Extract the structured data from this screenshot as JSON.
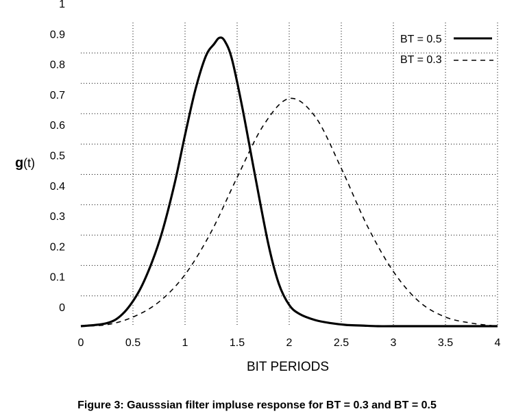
{
  "chart_data": {
    "type": "line",
    "xlabel": "BIT PERIODS",
    "ylabel_bold": "g",
    "ylabel_rest": "(t)",
    "caption": "Figure 3:   Gausssian filter impluse response for BT = 0.3 and BT = 0.5",
    "xlim": [
      0,
      4
    ],
    "ylim": [
      0,
      1
    ],
    "x_ticks": [
      0,
      0.5,
      1,
      1.5,
      2,
      2.5,
      3,
      3.5,
      4
    ],
    "x_tick_labels": [
      "0",
      "0.5",
      "1",
      "1.5",
      "2",
      "2.5",
      "3",
      "3.5",
      "4"
    ],
    "y_ticks": [
      0,
      0.1,
      0.2,
      0.3,
      0.4,
      0.5,
      0.6,
      0.7,
      0.8,
      0.9,
      1
    ],
    "y_tick_labels": [
      "0",
      "0.1",
      "0.2",
      "0.3",
      "0.4",
      "0.5",
      "0.6",
      "0.7",
      "0.8",
      "0.9",
      "1"
    ],
    "grid": true,
    "legend_position": "top-right",
    "series": [
      {
        "name": "BT = 0.5",
        "style": "solid",
        "color": "#000000",
        "x": [
          0,
          0.25,
          0.4,
          0.55,
          0.67,
          0.78,
          0.9,
          1.0,
          1.1,
          1.2,
          1.28,
          1.33,
          1.38,
          1.45,
          1.55,
          1.67,
          1.8,
          1.9,
          2.0,
          2.1,
          2.25,
          2.4,
          2.55,
          2.7,
          2.85,
          3.0,
          3.5,
          4.0
        ],
        "y": [
          0.0,
          0.01,
          0.04,
          0.11,
          0.2,
          0.31,
          0.47,
          0.63,
          0.78,
          0.89,
          0.93,
          0.95,
          0.94,
          0.88,
          0.72,
          0.5,
          0.27,
          0.14,
          0.07,
          0.04,
          0.02,
          0.01,
          0.004,
          0.002,
          0.0,
          0.0,
          0.0,
          0.0
        ]
      },
      {
        "name": "BT = 0.3",
        "style": "dashed",
        "color": "#000000",
        "x": [
          0,
          0.25,
          0.5,
          0.75,
          1.0,
          1.25,
          1.5,
          1.75,
          2.0,
          2.25,
          2.5,
          2.75,
          3.0,
          3.25,
          3.5,
          3.75,
          4.0
        ],
        "y": [
          0.0,
          0.005,
          0.03,
          0.08,
          0.17,
          0.31,
          0.49,
          0.66,
          0.75,
          0.69,
          0.52,
          0.33,
          0.18,
          0.08,
          0.03,
          0.01,
          0.0
        ]
      }
    ]
  }
}
